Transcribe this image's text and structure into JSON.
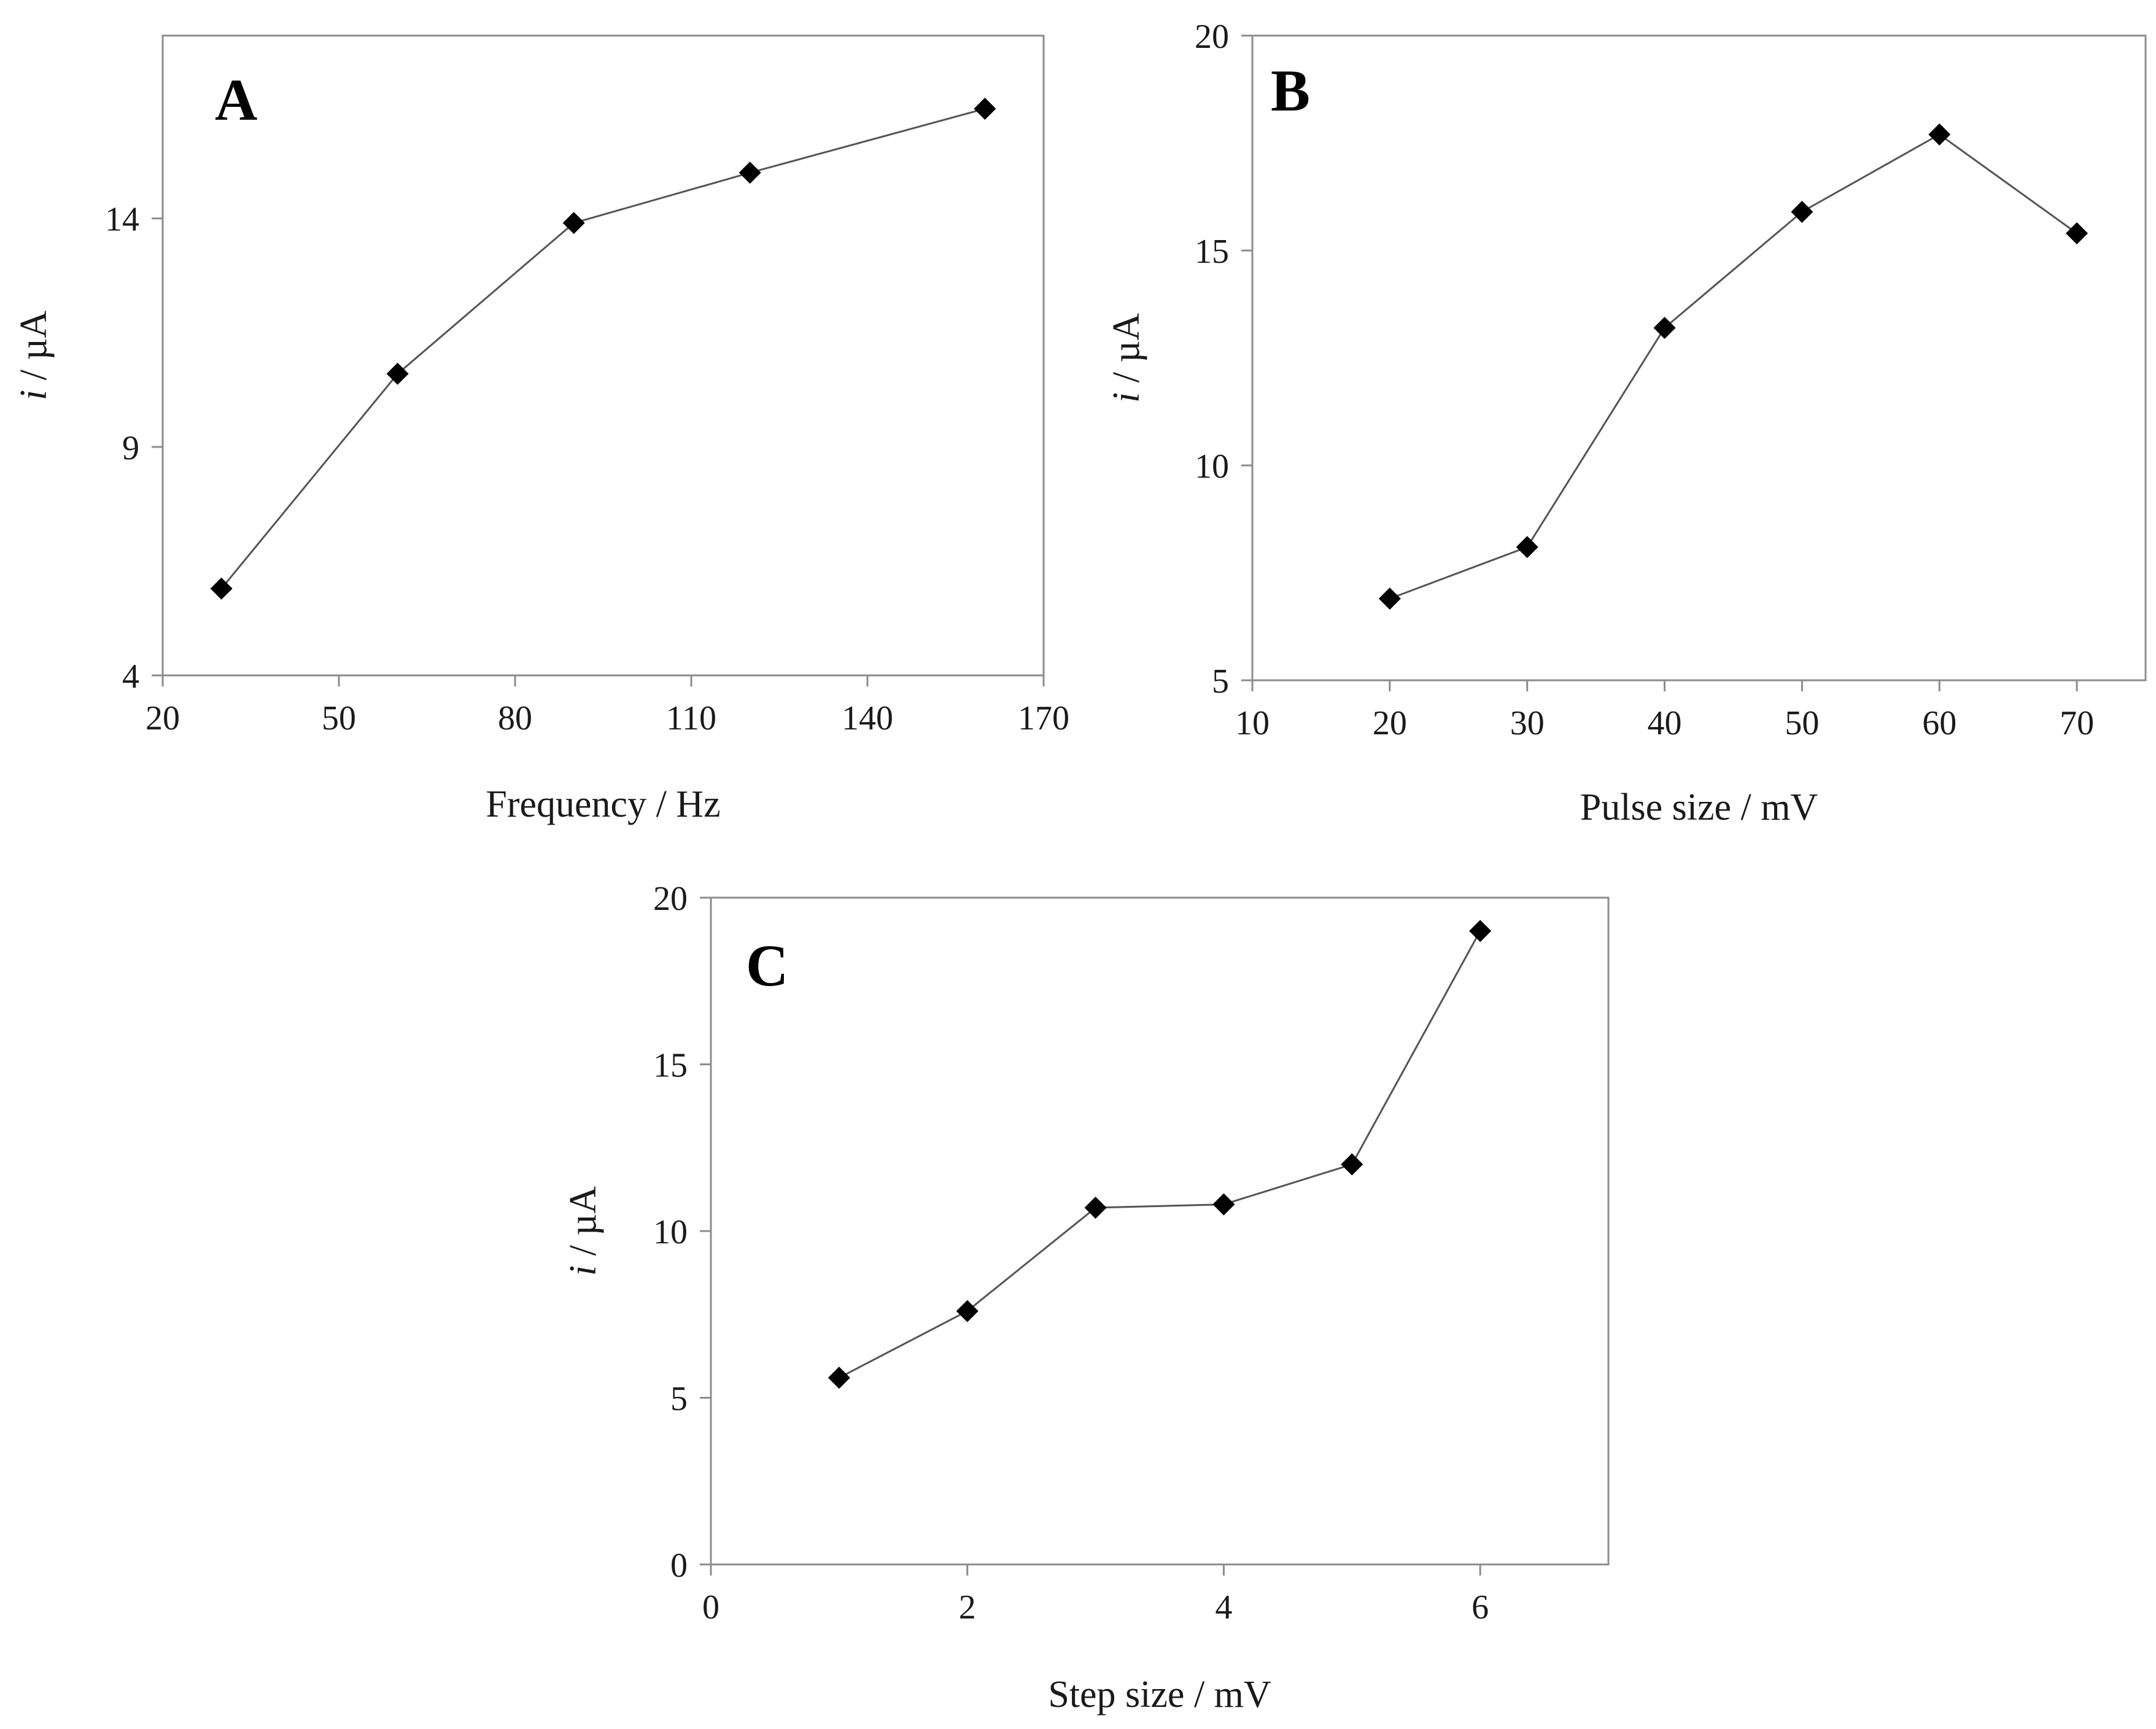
{
  "chart_data": [
    {
      "panel": "A",
      "type": "line",
      "title": "",
      "xlabel": "Frequency / Hz",
      "ylabel_italic": "i",
      "ylabel_rest": " / µA",
      "xlim": [
        20,
        170
      ],
      "ylim": [
        4,
        18
      ],
      "xticks": [
        20,
        50,
        80,
        110,
        140,
        170
      ],
      "yticks": [
        4,
        9,
        14
      ],
      "series": [
        {
          "name": "A",
          "x": [
            30,
            60,
            90,
            120,
            160
          ],
          "y": [
            5.9,
            10.6,
            13.9,
            15.0,
            16.4
          ]
        }
      ],
      "marker": "diamond",
      "color": "#000000"
    },
    {
      "panel": "B",
      "type": "line",
      "title": "",
      "xlabel": "Pulse size  / mV",
      "ylabel_italic": "i",
      "ylabel_rest": " / µA",
      "xlim": [
        10,
        75
      ],
      "ylim": [
        5,
        20
      ],
      "xticks": [
        10,
        20,
        30,
        40,
        50,
        60,
        70
      ],
      "yticks": [
        5,
        10,
        15,
        20
      ],
      "series": [
        {
          "name": "B",
          "x": [
            20,
            30,
            40,
            50,
            60,
            70
          ],
          "y": [
            6.9,
            8.1,
            13.2,
            15.9,
            17.7,
            15.4
          ]
        }
      ],
      "marker": "diamond",
      "color": "#000000"
    },
    {
      "panel": "C",
      "type": "line",
      "title": "",
      "xlabel": "Step size  / mV",
      "ylabel_italic": "i",
      "ylabel_rest": " / µA",
      "xlim": [
        0,
        7
      ],
      "ylim": [
        0,
        20
      ],
      "xticks": [
        0,
        2,
        4,
        6
      ],
      "yticks": [
        0,
        5,
        10,
        15,
        20
      ],
      "series": [
        {
          "name": "C",
          "x": [
            1,
            2,
            3,
            4,
            5,
            6
          ],
          "y": [
            5.6,
            7.6,
            10.7,
            10.8,
            12.0,
            19.0
          ]
        }
      ],
      "marker": "diamond",
      "color": "#000000"
    }
  ]
}
